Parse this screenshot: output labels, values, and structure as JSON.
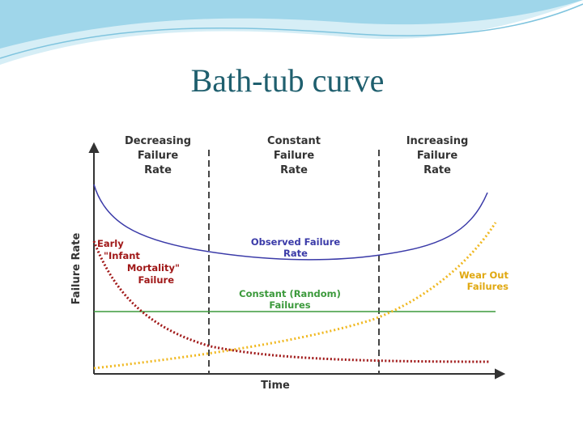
{
  "slide": {
    "title": "Bath-tub curve"
  },
  "diagram": {
    "phases": [
      [
        "Decreasing",
        "Failure",
        "Rate"
      ],
      [
        "Constant",
        "Failure",
        "Rate"
      ],
      [
        "Increasing",
        "Failure",
        "Rate"
      ]
    ],
    "y_axis_label": "Failure Rate",
    "x_axis_label": "Time",
    "observed_label": [
      "Observed Failure",
      "Rate"
    ],
    "constant_label": [
      "Constant (Random)",
      "Failures"
    ],
    "early_label": [
      "Early",
      "\"Infant",
      "Mortality\"",
      "Failure"
    ],
    "wearout_label": [
      "Wear Out",
      "Failures"
    ]
  }
}
